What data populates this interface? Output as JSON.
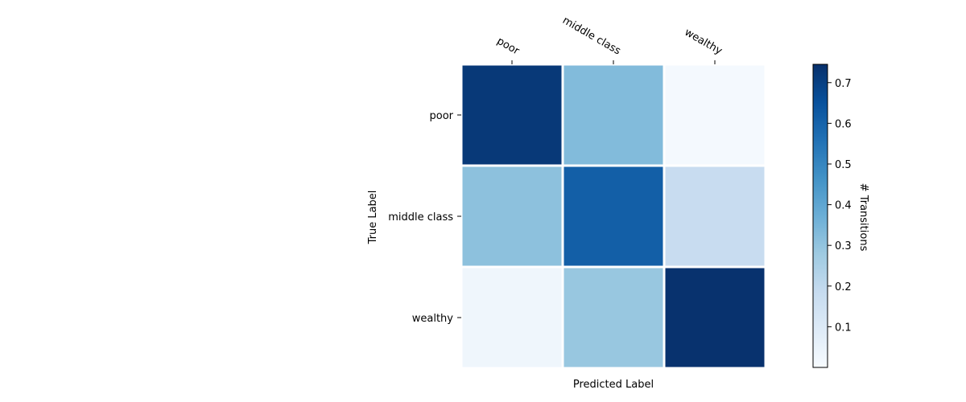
{
  "chart_data": {
    "type": "heatmap",
    "x_categories": [
      "poor",
      "middle class",
      "wealthy"
    ],
    "y_categories": [
      "poor",
      "middle class",
      "wealthy"
    ],
    "values": [
      [
        0.72,
        0.33,
        0.01
      ],
      [
        0.31,
        0.61,
        0.18
      ],
      [
        0.03,
        0.29,
        0.74
      ]
    ],
    "xlabel": "Predicted Label",
    "ylabel": "True Label",
    "colorbar": {
      "label": "# Transitions",
      "range": [
        0.0,
        0.745
      ],
      "ticks": [
        0.1,
        0.2,
        0.3,
        0.4,
        0.5,
        0.6,
        0.7
      ],
      "tick_labels": [
        "0.1",
        "0.2",
        "0.3",
        "0.4",
        "0.5",
        "0.6",
        "0.7"
      ]
    },
    "colormap": "Blues",
    "x_tick_position": "top",
    "grid": false,
    "cell_border_color": "#ffffff"
  }
}
